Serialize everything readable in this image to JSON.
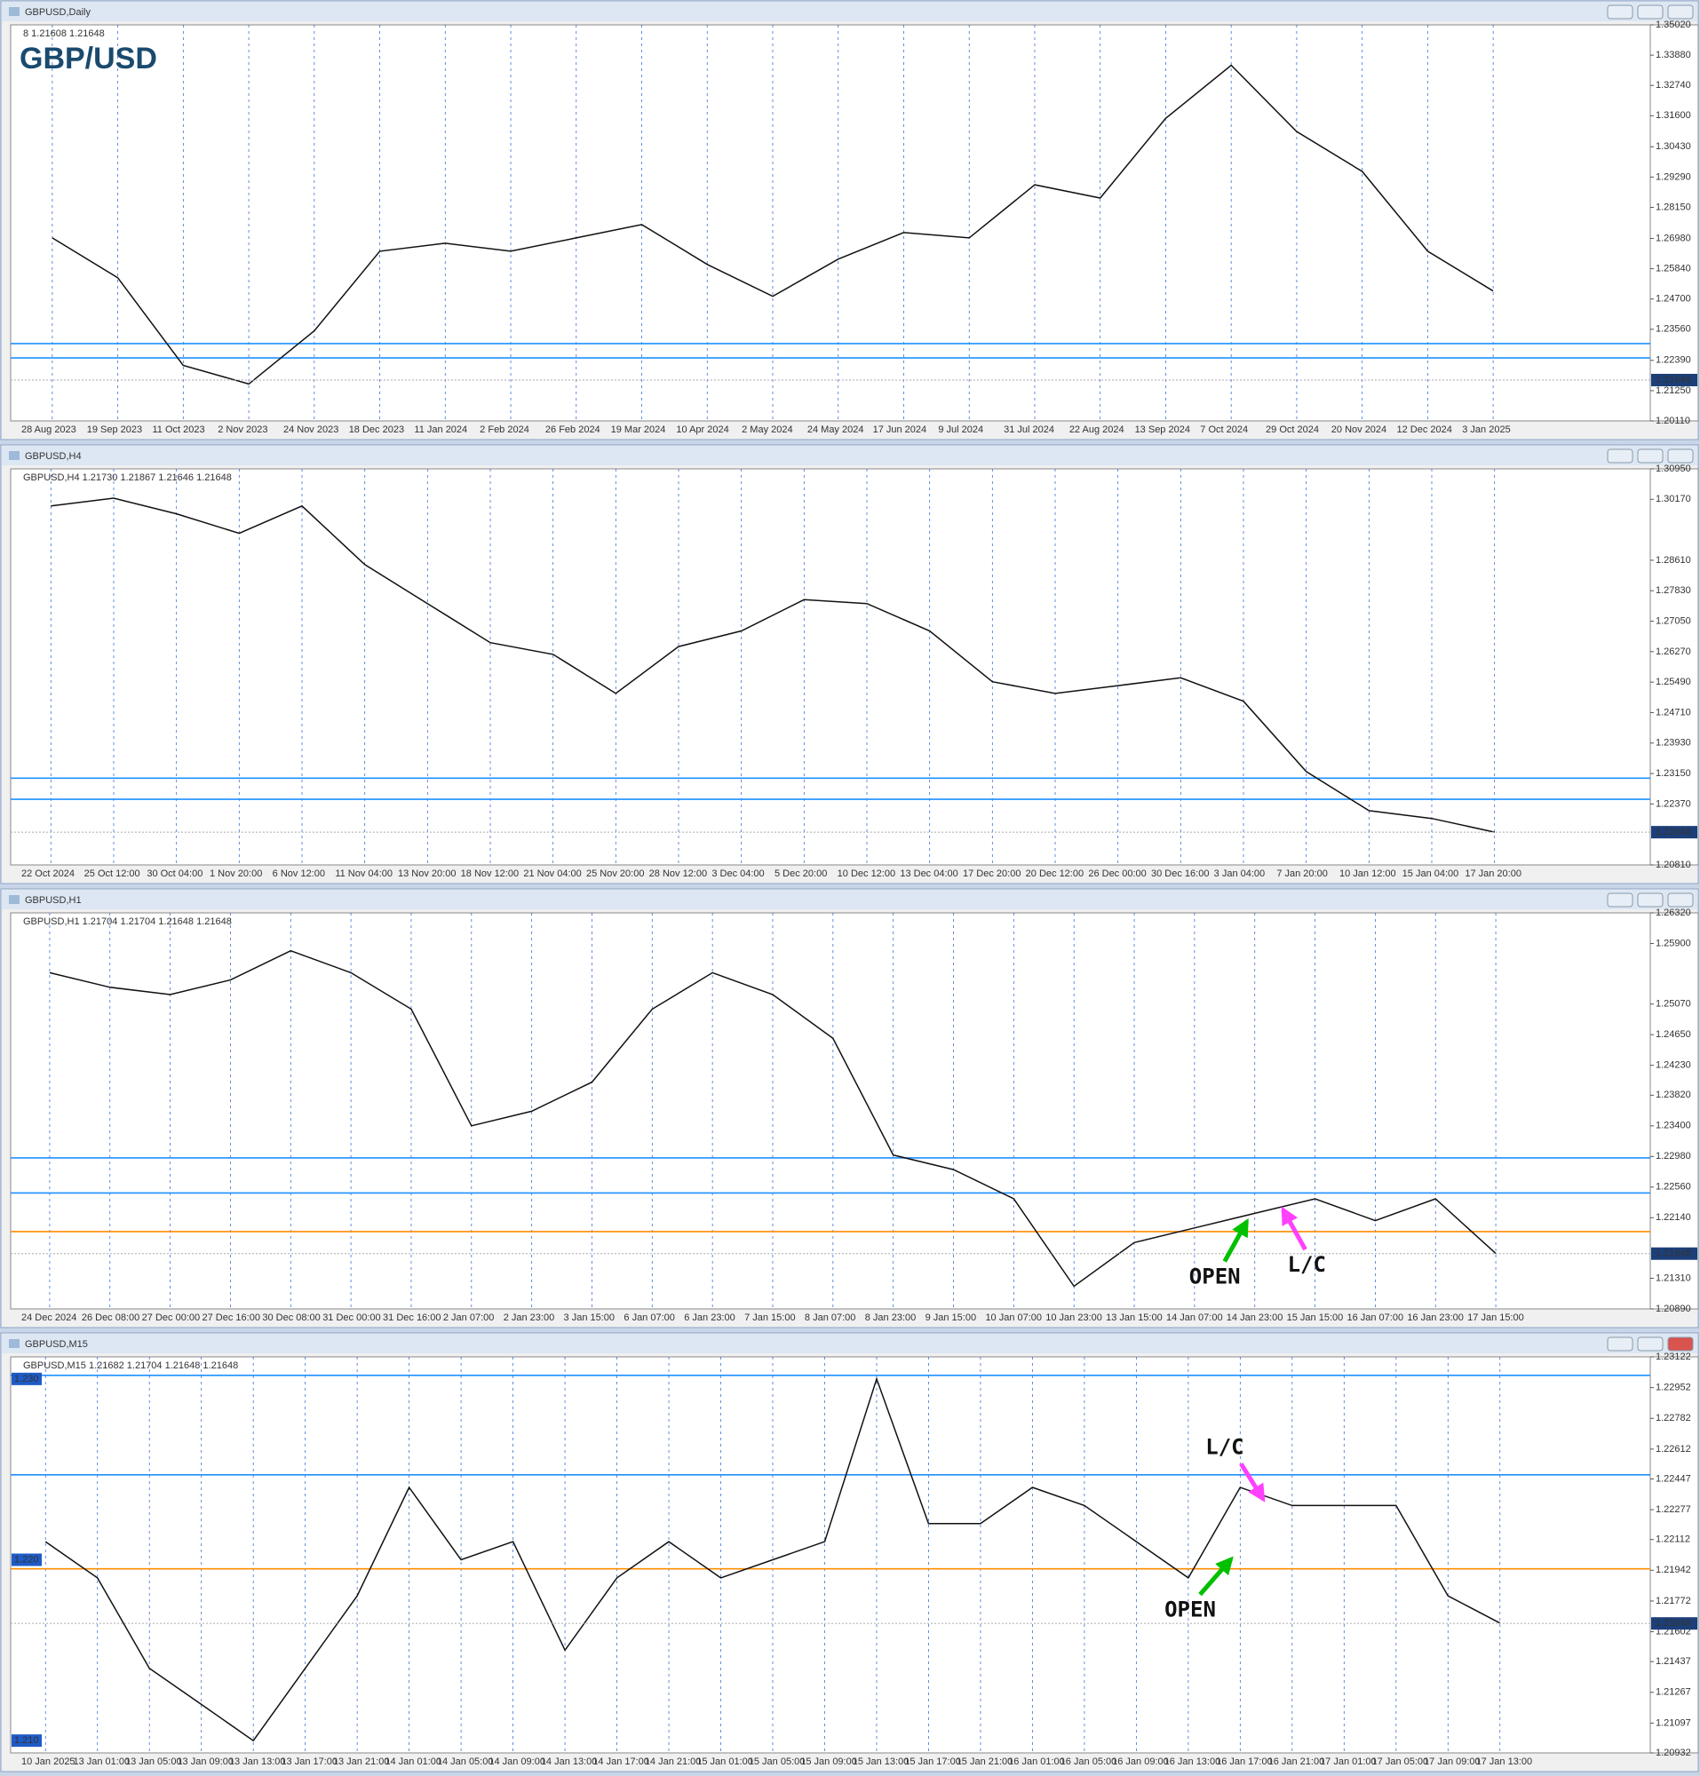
{
  "windows": [
    {
      "title": "GBPUSD,Daily",
      "info": "8 1.21608 1.21648",
      "label": "GBP/USD",
      "ylim": [
        1.2011,
        1.3502
      ],
      "yticks": [
        {
          "value": 1.3502,
          "label": "1.35020"
        },
        {
          "value": 1.3388,
          "label": "1.33880"
        },
        {
          "value": 1.3274,
          "label": "1.32740"
        },
        {
          "value": 1.316,
          "label": "1.31600"
        },
        {
          "value": 1.3043,
          "label": "1.30430"
        },
        {
          "value": 1.2929,
          "label": "1.29290"
        },
        {
          "value": 1.2815,
          "label": "1.28150"
        },
        {
          "value": 1.2698,
          "label": "1.26980"
        },
        {
          "value": 1.2584,
          "label": "1.25840"
        },
        {
          "value": 1.247,
          "label": "1.24700"
        },
        {
          "value": 1.2356,
          "label": "1.23560"
        },
        {
          "value": 1.2239,
          "label": "1.22390"
        },
        {
          "value": 1.2125,
          "label": "1.21250"
        },
        {
          "value": 1.2011,
          "label": "1.20110"
        }
      ],
      "xticks": [
        "28 Aug 2023",
        "19 Sep 2023",
        "11 Oct 2023",
        "2 Nov 2023",
        "24 Nov 2023",
        "18 Dec 2023",
        "11 Jan 2024",
        "2 Feb 2024",
        "26 Feb 2024",
        "19 Mar 2024",
        "10 Apr 2024",
        "2 May 2024",
        "24 May 2024",
        "17 Jun 2024",
        "9 Jul 2024",
        "31 Jul 2024",
        "22 Aug 2024",
        "13 Sep 2024",
        "7 Oct 2024",
        "29 Oct 2024",
        "20 Nov 2024",
        "12 Dec 2024",
        "3 Jan 2025"
      ],
      "closes": [
        1.27,
        1.255,
        1.222,
        1.215,
        1.235,
        1.265,
        1.268,
        1.265,
        1.27,
        1.275,
        1.26,
        1.248,
        1.262,
        1.272,
        1.27,
        1.29,
        1.285,
        1.315,
        1.335,
        1.31,
        1.295,
        1.265,
        1.25
      ],
      "levels": [
        {
          "value": 1.2302,
          "color": "#1e90ff"
        },
        {
          "value": 1.2248,
          "color": "#1e90ff"
        }
      ],
      "current_price": {
        "value": 1.21648,
        "label": "1.21648"
      }
    },
    {
      "title": "GBPUSD,H4",
      "info": "GBPUSD,H4 1.21730 1.21867 1.21646 1.21648",
      "ylim": [
        1.2081,
        1.3095
      ],
      "yticks": [
        {
          "value": 1.3095,
          "label": "1.30950"
        },
        {
          "value": 1.3017,
          "label": "1.30170"
        },
        {
          "value": 1.2861,
          "label": "1.28610"
        },
        {
          "value": 1.2783,
          "label": "1.27830"
        },
        {
          "value": 1.2705,
          "label": "1.27050"
        },
        {
          "value": 1.2627,
          "label": "1.26270"
        },
        {
          "value": 1.2549,
          "label": "1.25490"
        },
        {
          "value": 1.2471,
          "label": "1.24710"
        },
        {
          "value": 1.2393,
          "label": "1.23930"
        },
        {
          "value": 1.2315,
          "label": "1.23150"
        },
        {
          "value": 1.2237,
          "label": "1.22370"
        },
        {
          "value": 1.2081,
          "label": "1.20810"
        }
      ],
      "xticks": [
        "22 Oct 2024",
        "25 Oct 12:00",
        "30 Oct 04:00",
        "1 Nov 20:00",
        "6 Nov 12:00",
        "11 Nov 04:00",
        "13 Nov 20:00",
        "18 Nov 12:00",
        "21 Nov 04:00",
        "25 Nov 20:00",
        "28 Nov 12:00",
        "3 Dec 04:00",
        "5 Dec 20:00",
        "10 Dec 12:00",
        "13 Dec 04:00",
        "17 Dec 20:00",
        "20 Dec 12:00",
        "26 Dec 00:00",
        "30 Dec 16:00",
        "3 Jan 04:00",
        "7 Jan 20:00",
        "10 Jan 12:00",
        "15 Jan 04:00",
        "17 Jan 20:00"
      ],
      "closes": [
        1.3,
        1.302,
        1.298,
        1.293,
        1.3,
        1.285,
        1.275,
        1.265,
        1.262,
        1.252,
        1.264,
        1.268,
        1.276,
        1.275,
        1.268,
        1.255,
        1.252,
        1.254,
        1.256,
        1.25,
        1.232,
        1.222,
        1.22,
        1.2165
      ],
      "levels": [
        {
          "value": 1.2303,
          "color": "#1e90ff"
        },
        {
          "value": 1.2249,
          "color": "#1e90ff"
        }
      ],
      "current_price": {
        "value": 1.21648,
        "label": "1.21648"
      }
    },
    {
      "title": "GBPUSD,H1",
      "info": "GBPUSD,H1 1.21704 1.21704 1.21648 1.21648",
      "ylim": [
        1.2089,
        1.2632
      ],
      "yticks": [
        {
          "value": 1.2632,
          "label": "1.26320"
        },
        {
          "value": 1.259,
          "label": "1.25900"
        },
        {
          "value": 1.2507,
          "label": "1.25070"
        },
        {
          "value": 1.2465,
          "label": "1.24650"
        },
        {
          "value": 1.2423,
          "label": "1.24230"
        },
        {
          "value": 1.2382,
          "label": "1.23820"
        },
        {
          "value": 1.234,
          "label": "1.23400"
        },
        {
          "value": 1.2298,
          "label": "1.22980"
        },
        {
          "value": 1.2256,
          "label": "1.22560"
        },
        {
          "value": 1.2214,
          "label": "1.22140"
        },
        {
          "value": 1.2131,
          "label": "1.21310"
        },
        {
          "value": 1.2089,
          "label": "1.20890"
        }
      ],
      "xticks": [
        "24 Dec 2024",
        "26 Dec 08:00",
        "27 Dec 00:00",
        "27 Dec 16:00",
        "30 Dec 08:00",
        "31 Dec 00:00",
        "31 Dec 16:00",
        "2 Jan 07:00",
        "2 Jan 23:00",
        "3 Jan 15:00",
        "6 Jan 07:00",
        "6 Jan 23:00",
        "7 Jan 15:00",
        "8 Jan 07:00",
        "8 Jan 23:00",
        "9 Jan 15:00",
        "10 Jan 07:00",
        "10 Jan 23:00",
        "13 Jan 15:00",
        "14 Jan 07:00",
        "14 Jan 23:00",
        "15 Jan 15:00",
        "16 Jan 07:00",
        "16 Jan 23:00",
        "17 Jan 15:00"
      ],
      "closes": [
        1.255,
        1.253,
        1.252,
        1.254,
        1.258,
        1.255,
        1.25,
        1.234,
        1.236,
        1.24,
        1.25,
        1.255,
        1.252,
        1.246,
        1.23,
        1.228,
        1.224,
        1.212,
        1.218,
        1.22,
        1.222,
        1.224,
        1.221,
        1.224,
        1.2165
      ],
      "levels": [
        {
          "value": 1.2296,
          "color": "#1e90ff"
        },
        {
          "value": 1.2248,
          "color": "#1e90ff"
        },
        {
          "value": 1.2195,
          "color": "#ff8c00"
        }
      ],
      "current_price": {
        "value": 1.21648,
        "label": "1.21648"
      },
      "annotations": [
        {
          "text": "OPEN",
          "color": "#00c000"
        },
        {
          "text": "L/C",
          "color": "#ff40ff"
        }
      ]
    },
    {
      "title": "GBPUSD,M15",
      "info": "GBPUSD,M15 1.21682 1.21704 1.21648 1.21648",
      "ylim": [
        1.20932,
        1.23122
      ],
      "yticks": [
        {
          "value": 1.23122,
          "label": "1.23122"
        },
        {
          "value": 1.22952,
          "label": "1.22952"
        },
        {
          "value": 1.22782,
          "label": "1.22782"
        },
        {
          "value": 1.22612,
          "label": "1.22612"
        },
        {
          "value": 1.22447,
          "label": "1.22447"
        },
        {
          "value": 1.22277,
          "label": "1.22277"
        },
        {
          "value": 1.22112,
          "label": "1.22112"
        },
        {
          "value": 1.21942,
          "label": "1.21942"
        },
        {
          "value": 1.21772,
          "label": "1.21772"
        },
        {
          "value": 1.21602,
          "label": "1.21602"
        },
        {
          "value": 1.21437,
          "label": "1.21437"
        },
        {
          "value": 1.21267,
          "label": "1.21267"
        },
        {
          "value": 1.21097,
          "label": "1.21097"
        },
        {
          "value": 1.20932,
          "label": "1.20932"
        }
      ],
      "xticks": [
        "10 Jan 2025",
        "13 Jan 01:00",
        "13 Jan 05:00",
        "13 Jan 09:00",
        "13 Jan 13:00",
        "13 Jan 17:00",
        "13 Jan 21:00",
        "14 Jan 01:00",
        "14 Jan 05:00",
        "14 Jan 09:00",
        "14 Jan 13:00",
        "14 Jan 17:00",
        "14 Jan 21:00",
        "15 Jan 01:00",
        "15 Jan 05:00",
        "15 Jan 09:00",
        "15 Jan 13:00",
        "15 Jan 17:00",
        "15 Jan 21:00",
        "16 Jan 01:00",
        "16 Jan 05:00",
        "16 Jan 09:00",
        "16 Jan 13:00",
        "16 Jan 17:00",
        "16 Jan 21:00",
        "17 Jan 01:00",
        "17 Jan 05:00",
        "17 Jan 09:00",
        "17 Jan 13:00"
      ],
      "closes": [
        1.221,
        1.219,
        1.214,
        1.212,
        1.21,
        1.214,
        1.218,
        1.224,
        1.22,
        1.221,
        1.215,
        1.219,
        1.221,
        1.219,
        1.22,
        1.221,
        1.23,
        1.222,
        1.222,
        1.224,
        1.223,
        1.221,
        1.219,
        1.224,
        1.223,
        1.223,
        1.223,
        1.218,
        1.2165
      ],
      "levels": [
        {
          "value": 1.2302,
          "color": "#1e90ff"
        },
        {
          "value": 1.2247,
          "color": "#1e90ff"
        },
        {
          "value": 1.2195,
          "color": "#ff8c00"
        }
      ],
      "side_labels": [
        {
          "value": 1.23,
          "label": "1.230"
        },
        {
          "value": 1.22,
          "label": "1.220"
        },
        {
          "value": 1.21,
          "label": "1.210"
        }
      ],
      "current_price": {
        "value": 1.21648,
        "label": "1.21648"
      },
      "annotations": [
        {
          "text": "OPEN",
          "color": "#00c000"
        },
        {
          "text": "L/C",
          "color": "#ff40ff"
        }
      ]
    }
  ]
}
